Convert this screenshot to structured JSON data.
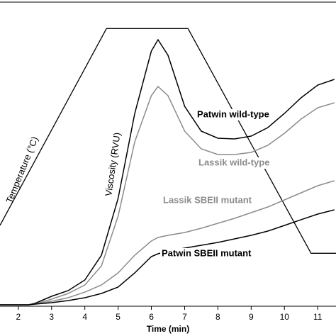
{
  "chart_data": {
    "type": "line",
    "xlabel": "Time (min)",
    "ylabel": "Viscosity (RVU)",
    "y2label": "Temperature (°C)",
    "xlim": [
      1.45,
      11.55
    ],
    "xticks": [
      2,
      3,
      4,
      5,
      6,
      7,
      8,
      9,
      10,
      11
    ],
    "ylim": [
      0,
      400
    ],
    "y2lim": [
      39.4,
      100.3
    ],
    "x": [
      1.45,
      2,
      2.3,
      2.5,
      3,
      3.5,
      4,
      4.5,
      5,
      5.5,
      6,
      6.2,
      6.5,
      7,
      7.5,
      8,
      8.5,
      9,
      9.5,
      10,
      10.5,
      11,
      11.5
    ],
    "series": [
      {
        "name": "Patwin wild-type",
        "color": "#000000",
        "values": [
          1.9,
          1.9,
          1.9,
          3.7,
          13.1,
          20.5,
          34.5,
          67.1,
          141.7,
          253.6,
          335.7,
          350.6,
          330.1,
          262.9,
          230.3,
          221.0,
          220.0,
          223.8,
          235.0,
          253.6,
          274.1,
          290.9,
          298.4
        ]
      },
      {
        "name": "Lassik wild-type",
        "color": "#8c8c8c",
        "values": [
          1.9,
          1.9,
          1.9,
          2.8,
          9.3,
          16.8,
          28.0,
          53.1,
          118.4,
          216.3,
          276.9,
          289.0,
          276.9,
          230.3,
          207.0,
          199.5,
          199.5,
          202.3,
          211.7,
          227.5,
          246.2,
          261.1,
          267.6
        ]
      },
      {
        "name": "Lassik SBEII mutant",
        "color": "#8c8c8c",
        "values": [
          1.9,
          1.9,
          1.9,
          2.8,
          6.5,
          11.2,
          18.6,
          28.0,
          43.8,
          67.1,
          85.8,
          90.4,
          93.2,
          97.0,
          102.6,
          109.1,
          115.6,
          123.1,
          130.5,
          139.9,
          149.2,
          158.5,
          165.0
        ]
      },
      {
        "name": "Patwin SBEII mutant",
        "color": "#000000",
        "values": [
          1.9,
          1.9,
          1.9,
          2.8,
          4.7,
          7.5,
          11.2,
          16.8,
          25.2,
          43.8,
          65.3,
          69.0,
          72.7,
          76.5,
          80.2,
          83.9,
          88.6,
          93.2,
          98.8,
          106.3,
          113.8,
          121.2,
          126.8
        ]
      }
    ],
    "temperature_profile": {
      "axis": "y2",
      "color": "#000000",
      "x": [
        1.45,
        4.65,
        7.1,
        10.8,
        11.55
      ],
      "values": [
        55.6,
        95,
        95,
        50,
        50
      ]
    }
  }
}
